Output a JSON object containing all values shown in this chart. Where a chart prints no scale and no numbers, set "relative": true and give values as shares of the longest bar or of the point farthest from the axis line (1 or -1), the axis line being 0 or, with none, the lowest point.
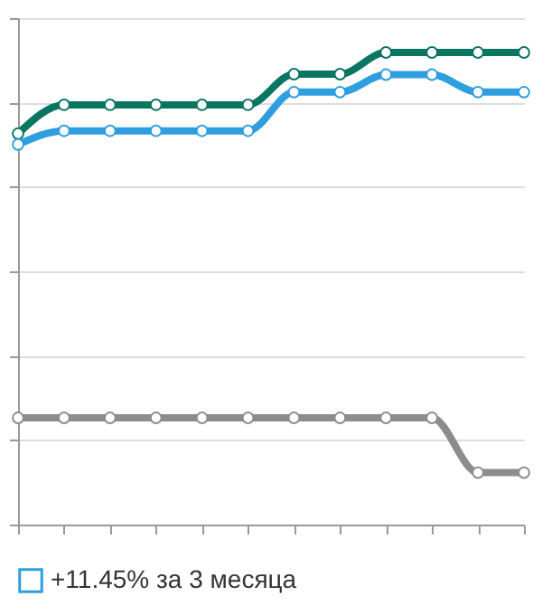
{
  "chart_data": {
    "type": "line",
    "relative": true,
    "categories": [
      null,
      null,
      null,
      null,
      null,
      null,
      null,
      null,
      null,
      null,
      null,
      null
    ],
    "series": [
      {
        "color": "#0a7560",
        "values": [
          0.828,
          0.889,
          0.889,
          0.889,
          0.889,
          0.889,
          0.954,
          0.954,
          1,
          1,
          1,
          1
        ]
      },
      {
        "name": "+11.45% за 3 месяца",
        "color": "#2e9ee0",
        "values": [
          0.805,
          0.834,
          0.834,
          0.834,
          0.834,
          0.834,
          0.916,
          0.916,
          0.953,
          0.953,
          0.916,
          0.916
        ]
      },
      {
        "color": "#8c8c8c",
        "values": [
          0.226,
          0.226,
          0.226,
          0.226,
          0.226,
          0.226,
          0.226,
          0.226,
          0.226,
          0.226,
          0.11,
          0.11
        ]
      }
    ],
    "marker": "circle",
    "line_style": "solid",
    "grid": "y",
    "legend": "bottom",
    "tick_labels": false
  }
}
